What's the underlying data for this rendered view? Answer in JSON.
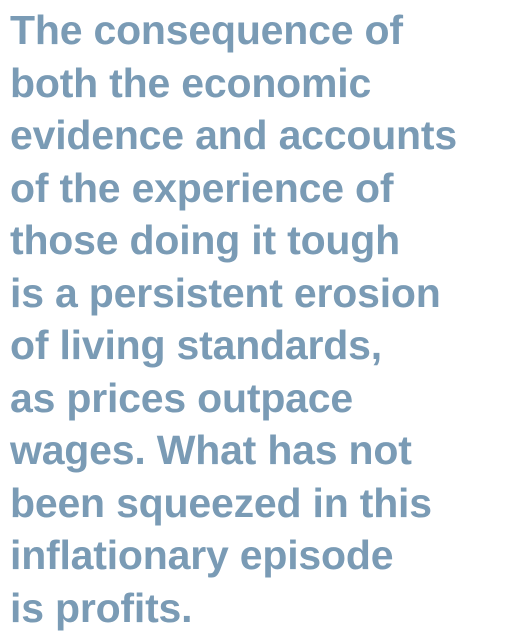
{
  "quote": {
    "lines": [
      "The consequence of",
      "both the economic",
      "evidence and accounts",
      "of the experience of",
      "those doing it tough",
      "is a persistent erosion",
      "of living standards,",
      "as prices outpace",
      "wages. What has not",
      "been squeezed in this",
      "inflationary episode",
      "is profits."
    ]
  }
}
